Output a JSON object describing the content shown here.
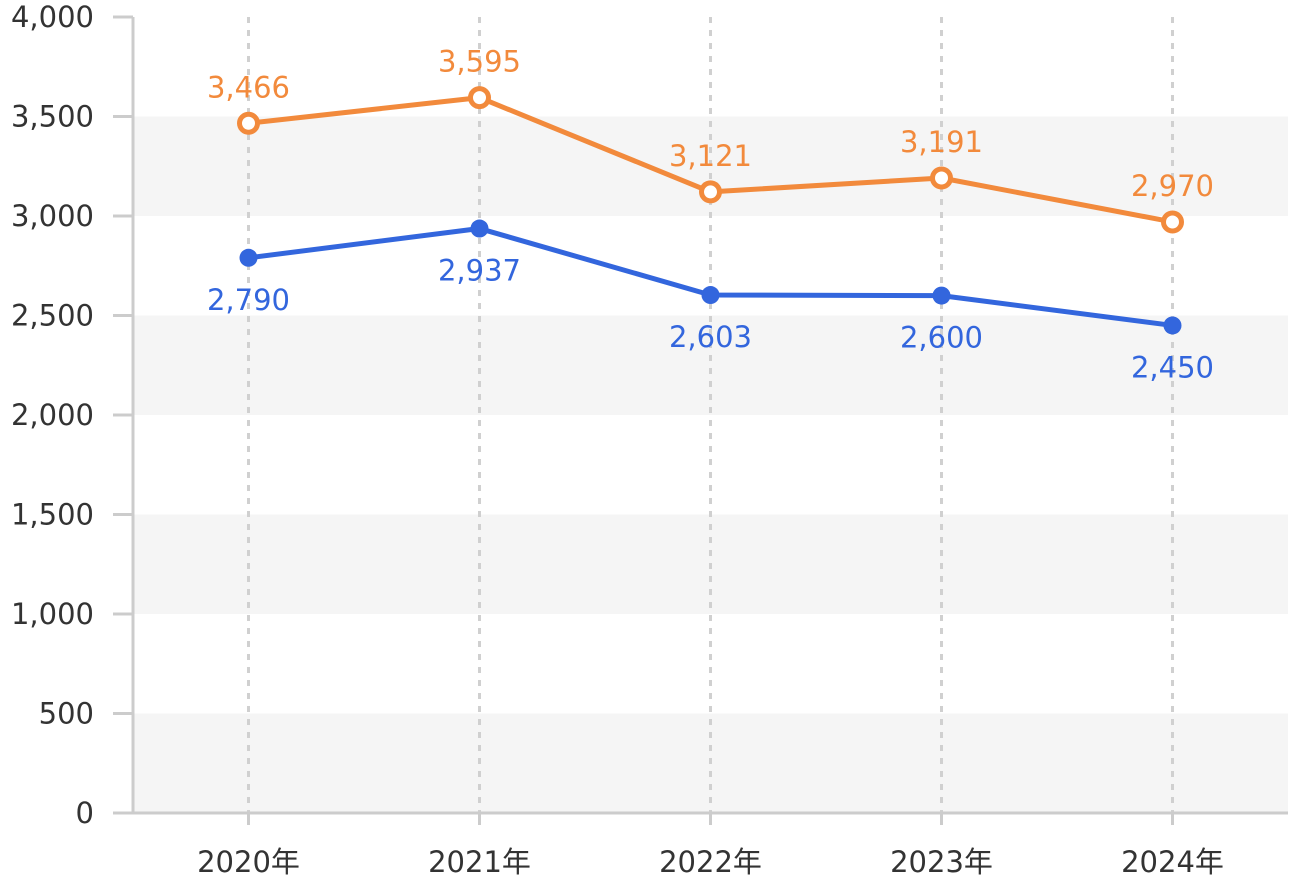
{
  "chart_data": {
    "type": "line",
    "categories": [
      "2020年",
      "2021年",
      "2022年",
      "2023年",
      "2024年"
    ],
    "ylim": [
      0,
      4000
    ],
    "y_ticks": [
      "0",
      "500",
      "1,000",
      "1,500",
      "2,000",
      "2,500",
      "3,000",
      "3,500",
      "4,000"
    ],
    "y_tick_values": [
      0,
      500,
      1000,
      1500,
      2000,
      2500,
      3000,
      3500,
      4000
    ],
    "grid": "alternating horizontal bands, dashed vertical lines",
    "series": [
      {
        "values": [
          3466,
          3595,
          3121,
          3191,
          2970
        ],
        "labels": [
          "3,466",
          "3,595",
          "3,121",
          "3,191",
          "2,970"
        ],
        "color": "#f28a3c",
        "marker": "hollow-circle",
        "label_position": "above"
      },
      {
        "values": [
          2790,
          2937,
          2603,
          2600,
          2450
        ],
        "labels": [
          "2,790",
          "2,937",
          "2,603",
          "2,600",
          "2,450"
        ],
        "color": "#3366dd",
        "marker": "filled-circle",
        "label_position": "below"
      }
    ]
  },
  "colors": {
    "band": "#f5f5f5",
    "axis": "#cccccc",
    "vgrid": "#d0d0d0",
    "tick_text": "#333333"
  }
}
